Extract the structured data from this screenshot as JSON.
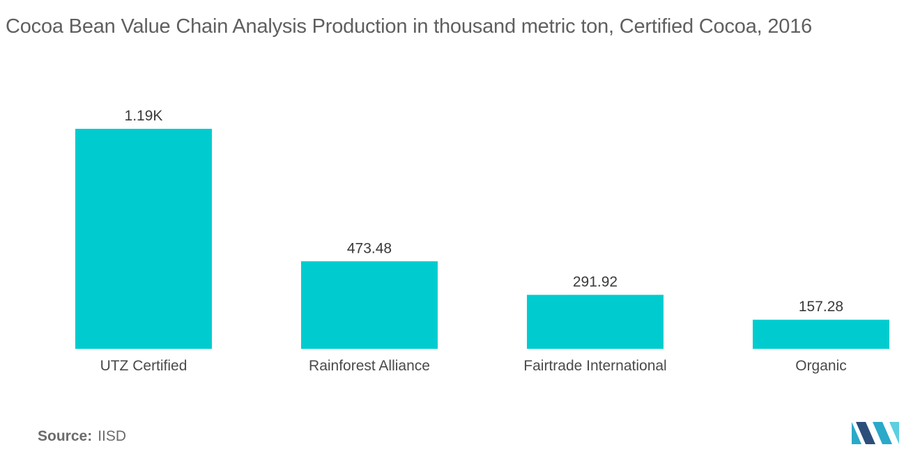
{
  "header": {
    "title": "Cocoa Bean Value Chain Analysis  Production in thousand metric ton, Certified Cocoa, 2016"
  },
  "footer": {
    "source_label": "Source:",
    "source_value": "IISD"
  },
  "brand": {
    "logo_icon": "mordor-intelligence-logo-icon",
    "logo_colors": [
      "#2b4f7a",
      "#2aa9c9",
      "#5ccfe0"
    ]
  },
  "chart_data": {
    "type": "bar",
    "title": "Cocoa Bean Value Chain Analysis  Production in thousand metric ton, Certified Cocoa, 2016",
    "categories": [
      "UTZ Certified",
      "Rainforest Alliance",
      "Fairtrade International",
      "Organic"
    ],
    "values": [
      1190,
      473.48,
      291.92,
      157.28
    ],
    "data_labels": [
      "1.19K",
      "473.48",
      "291.92",
      "157.28"
    ],
    "xlabel": "",
    "ylabel": "",
    "ylim": [
      0,
      1190
    ],
    "grid": false,
    "legend": "none",
    "bar_color": "#00cccf"
  }
}
